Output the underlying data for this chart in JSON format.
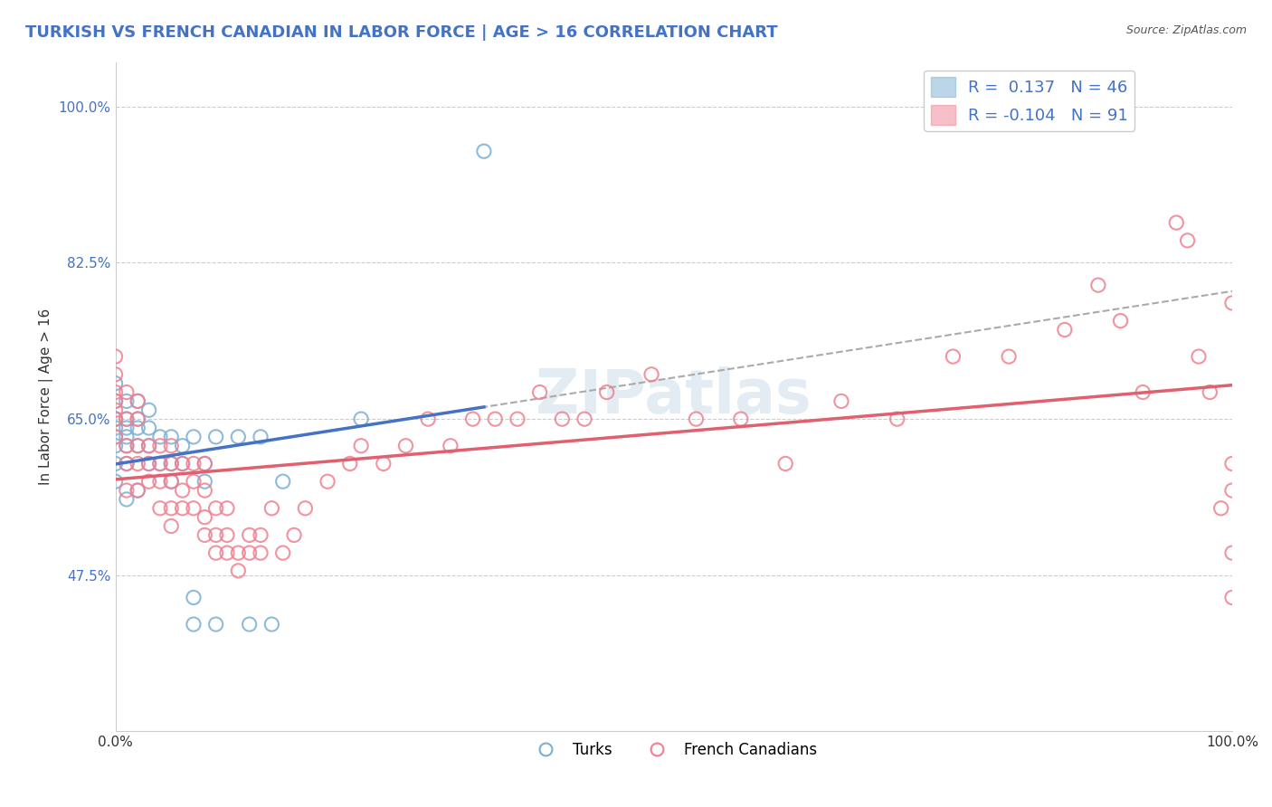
{
  "title": "TURKISH VS FRENCH CANADIAN IN LABOR FORCE | AGE > 16 CORRELATION CHART",
  "source_text": "Source: ZipAtlas.com",
  "xlabel": "",
  "ylabel": "In Labor Force | Age > 16",
  "xlim": [
    0.0,
    1.0
  ],
  "ylim": [
    0.3,
    1.05
  ],
  "x_tick_labels": [
    "0.0%",
    "100.0%"
  ],
  "y_tick_labels": [
    "47.5%",
    "65.0%",
    "82.5%",
    "100.0%"
  ],
  "y_tick_values": [
    0.475,
    0.65,
    0.825,
    1.0
  ],
  "watermark": "ZIPatlas",
  "legend_entries": [
    {
      "label": "R =  0.137   N = 46",
      "color": "#a8c4e0"
    },
    {
      "label": "R = -0.104   N = 91",
      "color": "#f4a8b8"
    }
  ],
  "turks_color": "#7bafd4",
  "french_color": "#f08090",
  "trend_turks_color": "#4472c4",
  "trend_french_color": "#e06070",
  "background_color": "#ffffff",
  "grid_color": "#cccccc",
  "turks_x": [
    0.0,
    0.0,
    0.0,
    0.0,
    0.0,
    0.0,
    0.0,
    0.0,
    0.0,
    0.01,
    0.01,
    0.01,
    0.01,
    0.01,
    0.01,
    0.01,
    0.02,
    0.02,
    0.02,
    0.02,
    0.02,
    0.03,
    0.03,
    0.03,
    0.03,
    0.04,
    0.04,
    0.05,
    0.05,
    0.05,
    0.06,
    0.06,
    0.07,
    0.07,
    0.07,
    0.08,
    0.08,
    0.09,
    0.09,
    0.11,
    0.12,
    0.13,
    0.14,
    0.15,
    0.22,
    0.33
  ],
  "turks_y": [
    0.58,
    0.6,
    0.62,
    0.63,
    0.64,
    0.65,
    0.65,
    0.67,
    0.69,
    0.56,
    0.6,
    0.62,
    0.63,
    0.64,
    0.65,
    0.67,
    0.57,
    0.62,
    0.64,
    0.65,
    0.67,
    0.6,
    0.62,
    0.64,
    0.66,
    0.6,
    0.63,
    0.58,
    0.6,
    0.63,
    0.6,
    0.62,
    0.42,
    0.45,
    0.63,
    0.58,
    0.6,
    0.42,
    0.63,
    0.63,
    0.42,
    0.63,
    0.42,
    0.58,
    0.65,
    0.95
  ],
  "french_x": [
    0.0,
    0.0,
    0.0,
    0.0,
    0.0,
    0.0,
    0.0,
    0.01,
    0.01,
    0.01,
    0.01,
    0.01,
    0.02,
    0.02,
    0.02,
    0.02,
    0.02,
    0.03,
    0.03,
    0.03,
    0.04,
    0.04,
    0.04,
    0.04,
    0.05,
    0.05,
    0.05,
    0.05,
    0.05,
    0.06,
    0.06,
    0.06,
    0.07,
    0.07,
    0.07,
    0.08,
    0.08,
    0.08,
    0.08,
    0.09,
    0.09,
    0.09,
    0.1,
    0.1,
    0.1,
    0.11,
    0.11,
    0.12,
    0.12,
    0.13,
    0.13,
    0.14,
    0.15,
    0.16,
    0.17,
    0.19,
    0.21,
    0.22,
    0.24,
    0.26,
    0.28,
    0.3,
    0.32,
    0.34,
    0.36,
    0.38,
    0.4,
    0.42,
    0.44,
    0.48,
    0.52,
    0.56,
    0.6,
    0.65,
    0.7,
    0.75,
    0.8,
    0.85,
    0.88,
    0.9,
    0.92,
    0.95,
    0.96,
    0.97,
    0.98,
    0.99,
    1.0,
    1.0,
    1.0,
    1.0,
    1.0
  ],
  "french_y": [
    0.63,
    0.65,
    0.66,
    0.67,
    0.68,
    0.7,
    0.72,
    0.57,
    0.6,
    0.62,
    0.65,
    0.68,
    0.57,
    0.6,
    0.62,
    0.65,
    0.67,
    0.58,
    0.6,
    0.62,
    0.55,
    0.58,
    0.6,
    0.62,
    0.53,
    0.55,
    0.58,
    0.6,
    0.62,
    0.55,
    0.57,
    0.6,
    0.55,
    0.58,
    0.6,
    0.52,
    0.54,
    0.57,
    0.6,
    0.5,
    0.52,
    0.55,
    0.5,
    0.52,
    0.55,
    0.48,
    0.5,
    0.5,
    0.52,
    0.5,
    0.52,
    0.55,
    0.5,
    0.52,
    0.55,
    0.58,
    0.6,
    0.62,
    0.6,
    0.62,
    0.65,
    0.62,
    0.65,
    0.65,
    0.65,
    0.68,
    0.65,
    0.65,
    0.68,
    0.7,
    0.65,
    0.65,
    0.6,
    0.67,
    0.65,
    0.72,
    0.72,
    0.75,
    0.8,
    0.76,
    0.68,
    0.87,
    0.85,
    0.72,
    0.68,
    0.55,
    0.57,
    0.45,
    0.5,
    0.78,
    0.6
  ]
}
